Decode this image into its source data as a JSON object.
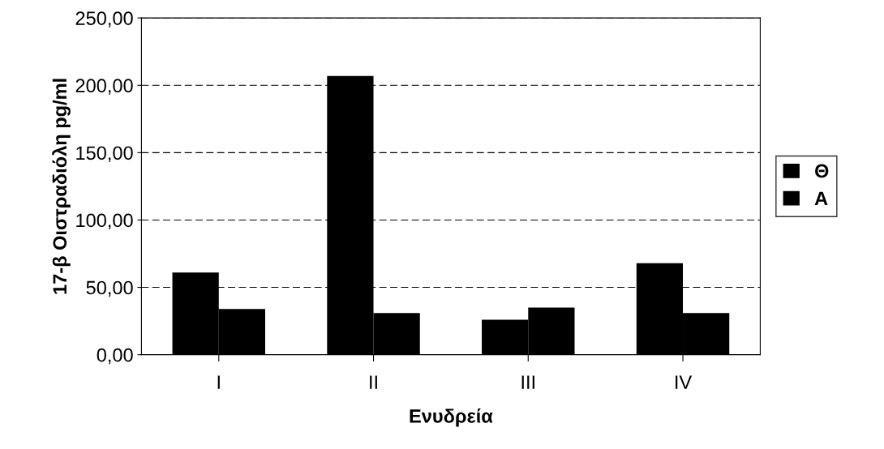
{
  "chart_data": {
    "type": "bar",
    "xlabel": "Ενυδρεία",
    "ylabel": "17-β Οιστραδιόλη pg/ml",
    "categories": [
      "I",
      "II",
      "III",
      "IV"
    ],
    "series": [
      {
        "name": "Θ",
        "color": "#000000",
        "values": [
          61,
          207,
          26,
          68
        ]
      },
      {
        "name": "Α",
        "color": "#000000",
        "values": [
          34,
          31,
          35,
          31
        ]
      }
    ],
    "ylim": [
      0,
      250
    ],
    "yticks": [
      {
        "value": 0,
        "label": "0,00"
      },
      {
        "value": 50,
        "label": "50,00"
      },
      {
        "value": 100,
        "label": "100,00"
      },
      {
        "value": 150,
        "label": "150,00"
      },
      {
        "value": 200,
        "label": "200,00"
      },
      {
        "value": 250,
        "label": "250,00"
      }
    ],
    "grid": "y",
    "legend": "right"
  }
}
